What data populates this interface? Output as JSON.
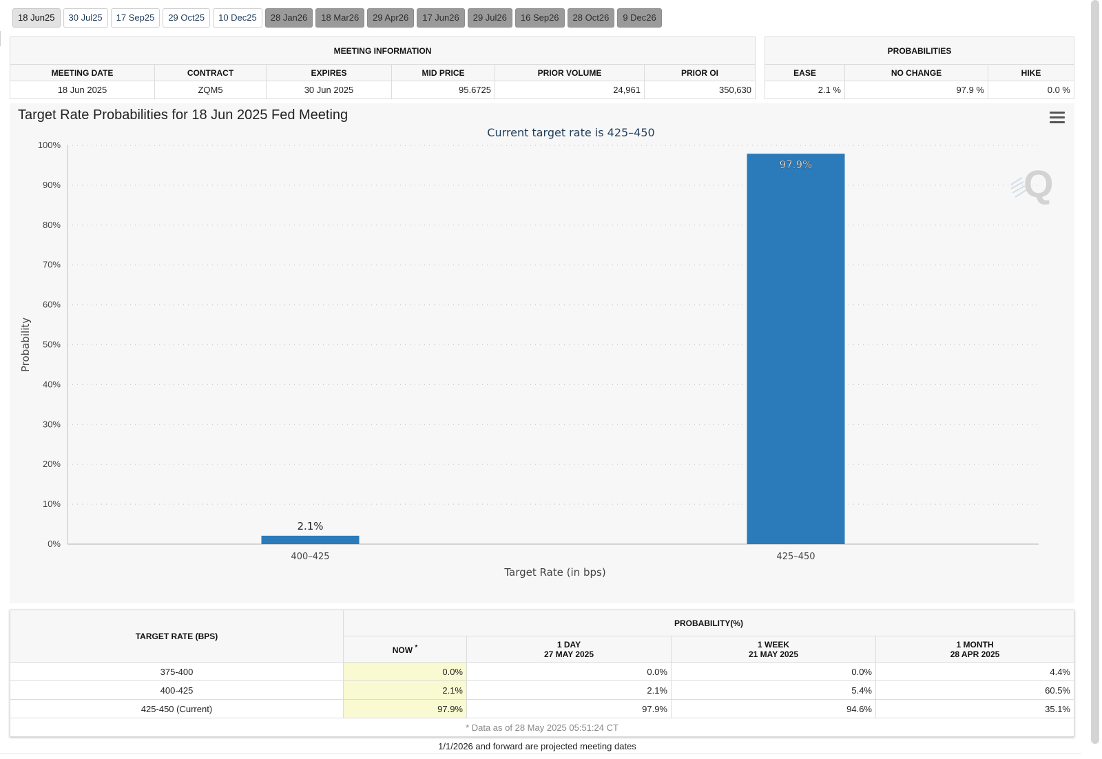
{
  "tabs": [
    {
      "label": "18 Jun25",
      "state": "active"
    },
    {
      "label": "30 Jul25",
      "state": "normal"
    },
    {
      "label": "17 Sep25",
      "state": "normal"
    },
    {
      "label": "29 Oct25",
      "state": "normal"
    },
    {
      "label": "10 Dec25",
      "state": "normal"
    },
    {
      "label": "28 Jan26",
      "state": "projected"
    },
    {
      "label": "18 Mar26",
      "state": "projected"
    },
    {
      "label": "29 Apr26",
      "state": "projected"
    },
    {
      "label": "17 Jun26",
      "state": "projected"
    },
    {
      "label": "29 Jul26",
      "state": "projected"
    },
    {
      "label": "16 Sep26",
      "state": "projected"
    },
    {
      "label": "28 Oct26",
      "state": "projected"
    },
    {
      "label": "9 Dec26",
      "state": "projected"
    }
  ],
  "meeting_info": {
    "heading": "MEETING INFORMATION",
    "columns": [
      "MEETING DATE",
      "CONTRACT",
      "EXPIRES",
      "MID PRICE",
      "PRIOR VOLUME",
      "PRIOR OI"
    ],
    "row": [
      "18 Jun 2025",
      "ZQM5",
      "30 Jun 2025",
      "95.6725",
      "24,961",
      "350,630"
    ]
  },
  "probabilities": {
    "heading": "PROBABILITIES",
    "columns": [
      "EASE",
      "NO CHANGE",
      "HIKE"
    ],
    "row": [
      "2.1 %",
      "97.9 %",
      "0.0 %"
    ]
  },
  "chart_data": {
    "type": "bar",
    "title": "Target Rate Probabilities for 18 Jun 2025 Fed Meeting",
    "subtitle": "Current target rate is 425–450",
    "xlabel": "Target Rate (in bps)",
    "ylabel": "Probability",
    "categories": [
      "400–425",
      "425–450"
    ],
    "values": [
      2.1,
      97.9
    ],
    "value_labels": [
      "2.1%",
      "97.9%"
    ],
    "ylim": [
      0,
      100
    ],
    "yticks": [
      "0%",
      "10%",
      "20%",
      "30%",
      "40%",
      "50%",
      "60%",
      "70%",
      "80%",
      "90%",
      "100%"
    ],
    "grid": true,
    "bar_color": "#2b7bba",
    "subtitle_color": "#1f3d5c"
  },
  "history": {
    "target_rate_header": "TARGET RATE (BPS)",
    "probability_header": "PROBABILITY(%)",
    "columns": [
      {
        "line1": "NOW",
        "line2": "",
        "mark": "*"
      },
      {
        "line1": "1 DAY",
        "line2": "27 MAY 2025",
        "mark": ""
      },
      {
        "line1": "1 WEEK",
        "line2": "21 MAY 2025",
        "mark": ""
      },
      {
        "line1": "1 MONTH",
        "line2": "28 APR 2025",
        "mark": ""
      }
    ],
    "rows": [
      {
        "rate": "375-400",
        "values": [
          "0.0%",
          "0.0%",
          "0.0%",
          "4.4%"
        ]
      },
      {
        "rate": "400-425",
        "values": [
          "2.1%",
          "2.1%",
          "5.4%",
          "60.5%"
        ]
      },
      {
        "rate": "425-450 (Current)",
        "values": [
          "97.9%",
          "97.9%",
          "94.6%",
          "35.1%"
        ]
      }
    ],
    "data_note": "* Data as of 28 May 2025 05:51:24 CT",
    "now_highlight_color": "#fafad2"
  },
  "footnote": "1/1/2026 and forward are projected meeting dates"
}
